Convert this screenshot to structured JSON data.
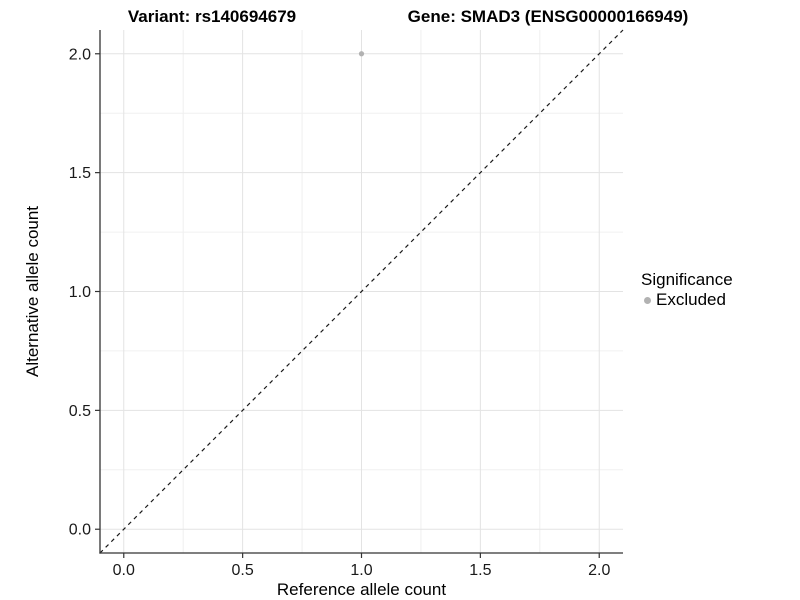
{
  "chart_data": {
    "type": "scatter",
    "titles": {
      "left": "Variant: rs140694679",
      "right": "Gene: SMAD3 (ENSG00000166949)"
    },
    "xlabel": "Reference allele count",
    "ylabel": "Alternative allele count",
    "xlim": [
      -0.1,
      2.1
    ],
    "ylim": [
      -0.1,
      2.1
    ],
    "xticks": [
      0.0,
      0.5,
      1.0,
      1.5,
      2.0
    ],
    "yticks": [
      0.0,
      0.5,
      1.0,
      1.5,
      2.0
    ],
    "tick_label_decimals": 1,
    "grid": "major and minor gridlines on, white panel background",
    "series": [
      {
        "name": "Excluded",
        "color": "#b2b2b2",
        "points": [
          {
            "x": 1.0,
            "y": 2.0
          }
        ]
      }
    ],
    "reference_line": {
      "kind": "identity (y = x)",
      "x1": -0.1,
      "y1": -0.1,
      "x2": 2.1,
      "y2": 2.1,
      "style": "dashed",
      "color": "#1a1a1a"
    },
    "legend": {
      "title": "Significance",
      "position": "right-middle",
      "entries": [
        {
          "label": "Excluded",
          "marker": "circle",
          "color": "#b2b2b2"
        }
      ]
    },
    "colors": {
      "background": "#ffffff",
      "grid_major": "#e3e3e3",
      "grid_minor": "#f0f0f0",
      "axis_line": "#333333",
      "tick_mark": "#333333",
      "tick_label": "#1a1a1a",
      "axis_title": "#000000",
      "plot_title": "#000000"
    }
  }
}
